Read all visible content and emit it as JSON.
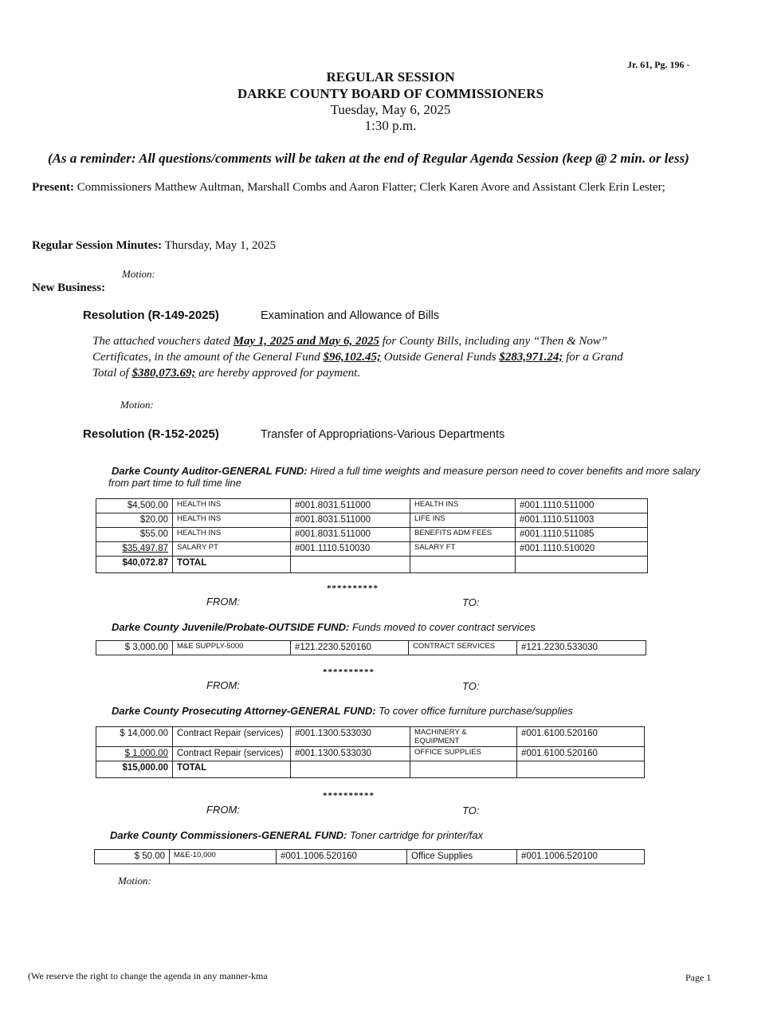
{
  "journal_ref": "Jr. 61, Pg. 196 -",
  "header": {
    "line1": "REGULAR SESSION",
    "line2": "DARKE COUNTY BOARD OF COMMISSIONERS",
    "line3": "Tuesday, May 6, 2025",
    "line4": "1:30 p.m."
  },
  "reminder": "(As a reminder:  All questions/comments will be taken at the end of Regular Agenda Session (keep @ 2 min. or less)",
  "present": {
    "label": "Present:",
    "text": "Commissioners Matthew Aultman, Marshall Combs and Aaron Flatter; Clerk Karen Avore and Assistant Clerk Erin Lester;"
  },
  "minutes": {
    "label": "Regular Session Minutes:",
    "text": "Thursday, May 1, 2025"
  },
  "motion": "Motion:",
  "new_business": "New Business:",
  "res1": {
    "number": "Resolution (R-149-2025)",
    "title": "Examination and Allowance of Bills",
    "p1": "The attached vouchers dated ",
    "d": "May 1, 2025 and May 6, 2025",
    "p2": " for County Bills, including any “Then & Now”",
    "p3": "Certificates, in the amount of the General Fund ",
    "gf": "$96,102.45;",
    "p4": " Outside General Funds ",
    "og": "$283,971.24;",
    "p5": " for a Grand",
    "p6": "Total of ",
    "total": "$380,073.69;",
    "p7": " are hereby approved for payment."
  },
  "res2": {
    "number": "Resolution (R-152-2025)",
    "title": "Transfer of Appropriations-Various Departments"
  },
  "stars": "**********",
  "from": "FROM:",
  "to": "TO:",
  "sections": [
    {
      "heading": "Darke County Auditor-GENERAL FUND:",
      "desc": "Hired a full time weights and measure person need to cover benefits and more salary",
      "desc2": "from part time to full time line",
      "rows": [
        [
          "$4,500.00",
          "HEALTH INS",
          "#001.8031.511000",
          "HEALTH INS",
          "#001.1110.511000"
        ],
        [
          "$20.00",
          "HEALTH INS",
          "#001.8031.511000",
          "LIFE INS",
          "#001.1110.511003"
        ],
        [
          "$55.00",
          "HEALTH INS",
          "#001.8031.511000",
          "BENEFITS ADM FEES",
          "#001.1110.511085"
        ],
        [
          "$35,497.87",
          "SALARY PT",
          "#001.1110.510030",
          "SALARY FT",
          "#001.1110.510020"
        ],
        [
          "$40,072.87",
          "TOTAL",
          "",
          "",
          ""
        ]
      ]
    },
    {
      "heading": "Darke County Juvenile/Probate-OUTSIDE FUND:",
      "desc": "Funds moved to cover contract services",
      "rows": [
        [
          "$ 3,000.00",
          "M&E SUPPLY-5000",
          "#121.2230.520160",
          "CONTRACT SERVICES",
          "#121.2230.533030"
        ]
      ]
    },
    {
      "heading": "Darke County Prosecuting Attorney-GENERAL FUND:",
      "desc": "To cover office furniture purchase/supplies",
      "rows": [
        [
          "$ 14,000.00",
          "Contract Repair (services)",
          "#001.1300.533030",
          "MACHINERY & EQUIPMENT",
          "#001.6100.520160"
        ],
        [
          "$ 1,000.00",
          "Contract Repair (services)",
          "#001.1300.533030",
          "OFFICE SUPPLIES",
          "#001.6100.520160"
        ],
        [
          "$15,000.00",
          "TOTAL",
          "",
          "",
          ""
        ]
      ]
    },
    {
      "heading": "Darke County Commissioners-GENERAL FUND:",
      "desc": "Toner cartridge for printer/fax",
      "rows": [
        [
          "$ 50.00",
          "M&E-10,000",
          "#001.1006.520160",
          "Office Supplies",
          "#001.1006.520100"
        ]
      ]
    }
  ],
  "footer": {
    "note": "(We reserve the right to change the agenda in any manner-kma",
    "page": "Page 1"
  }
}
